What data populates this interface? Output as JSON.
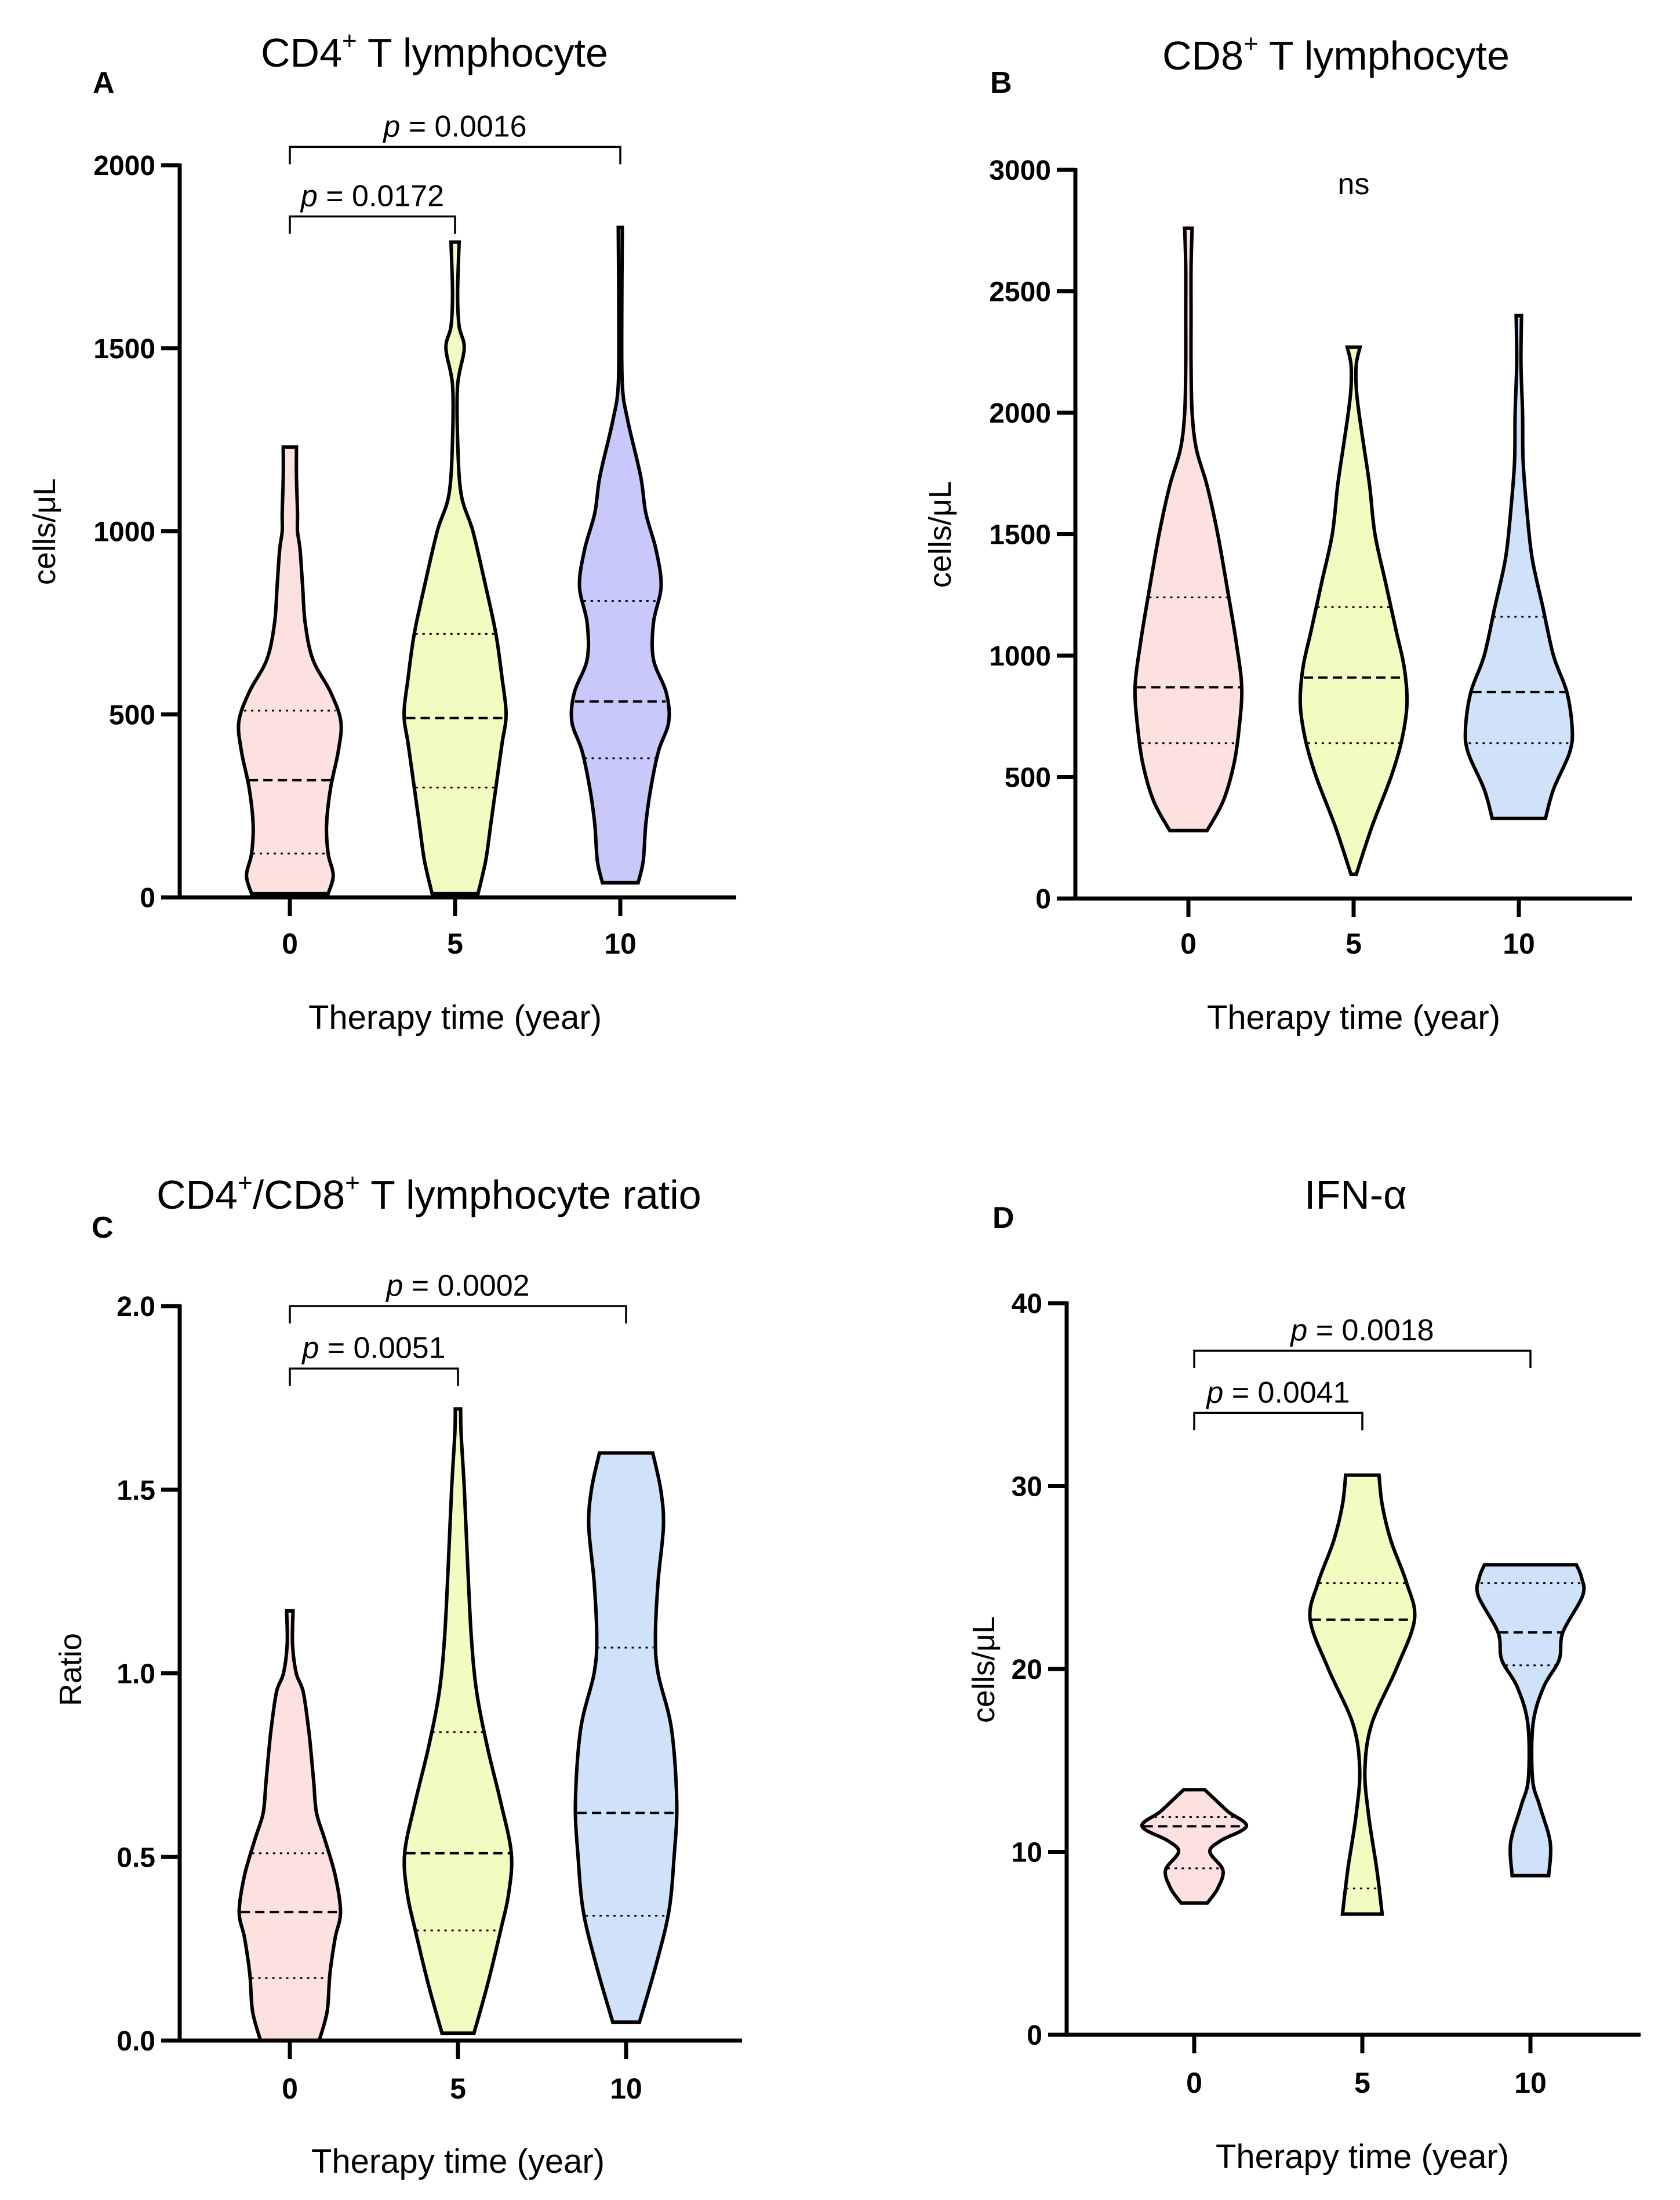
{
  "chart_data": [
    {
      "type": "violin",
      "panel_label": "A",
      "title": "CD4",
      "title_sup": "+",
      "title_rest": " T lymphocyte",
      "xlabel": "Therapy time (year)",
      "ylabel": "cells/μL",
      "ylim": [
        0,
        2000
      ],
      "yticks": [
        0,
        500,
        1000,
        1500,
        2000
      ],
      "categories": [
        "0",
        "5",
        "10"
      ],
      "colors": [
        "#fde0e0",
        "#f3fcc0",
        "#c9c8fb"
      ],
      "series": [
        {
          "name": "0",
          "min": 10,
          "q1": 120,
          "median": 320,
          "q3": 510,
          "max": 1230,
          "density": [
            [
              10,
              0.75
            ],
            [
              60,
              0.85
            ],
            [
              120,
              0.75
            ],
            [
              200,
              0.72
            ],
            [
              300,
              0.8
            ],
            [
              400,
              0.95
            ],
            [
              480,
              1.0
            ],
            [
              560,
              0.8
            ],
            [
              650,
              0.45
            ],
            [
              750,
              0.3
            ],
            [
              850,
              0.25
            ],
            [
              950,
              0.2
            ],
            [
              1000,
              0.15
            ],
            [
              1050,
              0.15
            ],
            [
              1150,
              0.13
            ],
            [
              1230,
              0.13
            ]
          ]
        },
        {
          "name": "5",
          "min": 10,
          "q1": 300,
          "median": 490,
          "q3": 720,
          "max": 1790,
          "density": [
            [
              10,
              0.45
            ],
            [
              100,
              0.6
            ],
            [
              200,
              0.7
            ],
            [
              300,
              0.8
            ],
            [
              420,
              0.92
            ],
            [
              500,
              1.0
            ],
            [
              600,
              0.92
            ],
            [
              720,
              0.8
            ],
            [
              850,
              0.6
            ],
            [
              1000,
              0.35
            ],
            [
              1100,
              0.12
            ],
            [
              1250,
              0.05
            ],
            [
              1400,
              0.05
            ],
            [
              1500,
              0.18
            ],
            [
              1560,
              0.08
            ],
            [
              1650,
              0.05
            ],
            [
              1790,
              0.08
            ]
          ]
        },
        {
          "name": "10",
          "min": 40,
          "q1": 380,
          "median": 535,
          "q3": 810,
          "max": 1830,
          "density": [
            [
              40,
              0.35
            ],
            [
              100,
              0.45
            ],
            [
              200,
              0.5
            ],
            [
              300,
              0.6
            ],
            [
              400,
              0.75
            ],
            [
              480,
              0.95
            ],
            [
              560,
              0.9
            ],
            [
              650,
              0.65
            ],
            [
              750,
              0.65
            ],
            [
              850,
              0.8
            ],
            [
              950,
              0.7
            ],
            [
              1050,
              0.5
            ],
            [
              1150,
              0.4
            ],
            [
              1300,
              0.15
            ],
            [
              1400,
              0.04
            ],
            [
              1600,
              0.03
            ],
            [
              1830,
              0.04
            ]
          ]
        }
      ],
      "annotations": [
        {
          "from": "0",
          "to": "10",
          "p": "p",
          "text": " = 0.0016",
          "y": 2050
        },
        {
          "from": "0",
          "to": "5",
          "p": "p",
          "text": " = 0.0172",
          "y": 1860
        }
      ]
    },
    {
      "type": "violin",
      "panel_label": "B",
      "title": "CD8",
      "title_sup": "+",
      "title_rest": " T lymphocyte",
      "xlabel": "Therapy time (year)",
      "ylabel": "cells/μL",
      "ylim": [
        0,
        3000
      ],
      "yticks": [
        0,
        500,
        1000,
        1500,
        2000,
        2500,
        3000
      ],
      "categories": [
        "0",
        "5",
        "10"
      ],
      "colors": [
        "#fde0e0",
        "#f3fcc0",
        "#cfe2fa"
      ],
      "series": [
        {
          "name": "0",
          "min": 280,
          "q1": 640,
          "median": 870,
          "q3": 1240,
          "max": 2760,
          "density": [
            [
              280,
              0.35
            ],
            [
              400,
              0.65
            ],
            [
              550,
              0.85
            ],
            [
              700,
              0.95
            ],
            [
              870,
              1.0
            ],
            [
              1050,
              0.9
            ],
            [
              1250,
              0.75
            ],
            [
              1500,
              0.55
            ],
            [
              1700,
              0.35
            ],
            [
              1850,
              0.15
            ],
            [
              2000,
              0.07
            ],
            [
              2200,
              0.05
            ],
            [
              2400,
              0.05
            ],
            [
              2600,
              0.05
            ],
            [
              2760,
              0.07
            ]
          ]
        },
        {
          "name": "5",
          "min": 100,
          "q1": 640,
          "median": 910,
          "q3": 1200,
          "max": 2270,
          "density": [
            [
              100,
              0.05
            ],
            [
              300,
              0.35
            ],
            [
              500,
              0.7
            ],
            [
              650,
              0.9
            ],
            [
              800,
              1.0
            ],
            [
              950,
              0.95
            ],
            [
              1100,
              0.8
            ],
            [
              1300,
              0.6
            ],
            [
              1500,
              0.4
            ],
            [
              1700,
              0.3
            ],
            [
              1850,
              0.2
            ],
            [
              2000,
              0.1
            ],
            [
              2100,
              0.05
            ],
            [
              2200,
              0.05
            ],
            [
              2270,
              0.12
            ]
          ]
        },
        {
          "name": "10",
          "min": 330,
          "q1": 640,
          "median": 850,
          "q3": 1160,
          "max": 2400,
          "density": [
            [
              330,
              0.5
            ],
            [
              450,
              0.65
            ],
            [
              600,
              0.95
            ],
            [
              700,
              1.0
            ],
            [
              850,
              0.9
            ],
            [
              1000,
              0.65
            ],
            [
              1200,
              0.45
            ],
            [
              1400,
              0.25
            ],
            [
              1600,
              0.15
            ],
            [
              1800,
              0.08
            ],
            [
              2000,
              0.07
            ],
            [
              2200,
              0.04
            ],
            [
              2400,
              0.05
            ]
          ]
        }
      ],
      "annotations": [
        {
          "from": "0",
          "to": "10",
          "p": "",
          "text": "ns",
          "y": 2900,
          "nobracket": true
        }
      ]
    },
    {
      "type": "violin",
      "panel_label": "C",
      "title": "CD4",
      "title_sup": "+",
      "title_mid": "/CD8",
      "title_sup2": "+",
      "title_rest": " T lymphocyte ratio",
      "xlabel": "Therapy time (year)",
      "ylabel": "Ratio",
      "ylim": [
        0,
        2.0
      ],
      "yticks": [
        0.0,
        0.5,
        1.0,
        1.5,
        2.0
      ],
      "tick_labels": [
        "0.0",
        "0.5",
        "1.0",
        "1.5",
        "2.0"
      ],
      "categories": [
        "0",
        "5",
        "10"
      ],
      "colors": [
        "#fde0e0",
        "#f3fcc0",
        "#cfe2fa"
      ],
      "series": [
        {
          "name": "0",
          "min": 0.0,
          "q1": 0.17,
          "median": 0.35,
          "q3": 0.51,
          "max": 1.17,
          "density": [
            [
              0.0,
              0.55
            ],
            [
              0.08,
              0.7
            ],
            [
              0.18,
              0.75
            ],
            [
              0.28,
              0.85
            ],
            [
              0.35,
              0.95
            ],
            [
              0.45,
              0.85
            ],
            [
              0.55,
              0.65
            ],
            [
              0.62,
              0.5
            ],
            [
              0.7,
              0.45
            ],
            [
              0.78,
              0.4
            ],
            [
              0.85,
              0.35
            ],
            [
              0.95,
              0.25
            ],
            [
              1.0,
              0.12
            ],
            [
              1.08,
              0.05
            ],
            [
              1.17,
              0.06
            ]
          ]
        },
        {
          "name": "5",
          "min": 0.02,
          "q1": 0.3,
          "median": 0.51,
          "q3": 0.84,
          "max": 1.72,
          "density": [
            [
              0.02,
              0.3
            ],
            [
              0.15,
              0.55
            ],
            [
              0.3,
              0.8
            ],
            [
              0.4,
              0.95
            ],
            [
              0.51,
              1.0
            ],
            [
              0.65,
              0.8
            ],
            [
              0.8,
              0.55
            ],
            [
              0.95,
              0.35
            ],
            [
              1.1,
              0.25
            ],
            [
              1.3,
              0.18
            ],
            [
              1.5,
              0.12
            ],
            [
              1.65,
              0.06
            ],
            [
              1.72,
              0.05
            ]
          ]
        },
        {
          "name": "10",
          "min": 0.05,
          "q1": 0.34,
          "median": 0.62,
          "q3": 1.07,
          "max": 1.6,
          "density": [
            [
              0.05,
              0.25
            ],
            [
              0.2,
              0.55
            ],
            [
              0.35,
              0.8
            ],
            [
              0.5,
              0.9
            ],
            [
              0.65,
              0.95
            ],
            [
              0.85,
              0.85
            ],
            [
              1.0,
              0.6
            ],
            [
              1.1,
              0.55
            ],
            [
              1.25,
              0.6
            ],
            [
              1.4,
              0.7
            ],
            [
              1.5,
              0.65
            ],
            [
              1.6,
              0.5
            ]
          ]
        }
      ],
      "annotations": [
        {
          "from": "0",
          "to": "10",
          "p": "p",
          "text": " = 0.0002",
          "y": 2.0
        },
        {
          "from": "0",
          "to": "5",
          "p": "p",
          "text": " = 0.0051",
          "y": 1.83
        }
      ]
    },
    {
      "type": "violin",
      "panel_label": "D",
      "title": "IFN-α",
      "xlabel": "Therapy time (year)",
      "ylabel": "cells/μL",
      "ylim": [
        0,
        40
      ],
      "yticks": [
        0,
        10,
        20,
        30,
        40
      ],
      "categories": [
        "0",
        "5",
        "10"
      ],
      "colors": [
        "#fde0e0",
        "#f3fcc0",
        "#cfe2fa"
      ],
      "series": [
        {
          "name": "0",
          "min": 7.2,
          "q1": 9.1,
          "median": 11.4,
          "q3": 11.9,
          "max": 13.4,
          "density": [
            [
              7.2,
              0.25
            ],
            [
              8.0,
              0.45
            ],
            [
              9.0,
              0.55
            ],
            [
              10.0,
              0.3
            ],
            [
              10.6,
              0.5
            ],
            [
              11.4,
              1.0
            ],
            [
              12.2,
              0.65
            ],
            [
              13.0,
              0.35
            ],
            [
              13.4,
              0.2
            ]
          ]
        },
        {
          "name": "5",
          "min": 6.6,
          "q1": 8.0,
          "median": 22.7,
          "q3": 24.7,
          "max": 30.6,
          "density": [
            [
              6.6,
              0.38
            ],
            [
              9.0,
              0.28
            ],
            [
              12.0,
              0.12
            ],
            [
              14.5,
              0.05
            ],
            [
              17.0,
              0.18
            ],
            [
              20.0,
              0.65
            ],
            [
              22.7,
              1.0
            ],
            [
              24.7,
              0.85
            ],
            [
              27.0,
              0.55
            ],
            [
              29.0,
              0.38
            ],
            [
              30.6,
              0.32
            ]
          ]
        },
        {
          "name": "10",
          "min": 8.7,
          "q1": 20.2,
          "median": 22.0,
          "q3": 24.7,
          "max": 25.7,
          "density": [
            [
              8.7,
              0.35
            ],
            [
              10.5,
              0.38
            ],
            [
              12.5,
              0.18
            ],
            [
              14.0,
              0.04
            ],
            [
              17.0,
              0.05
            ],
            [
              19.0,
              0.25
            ],
            [
              20.5,
              0.55
            ],
            [
              22.0,
              0.62
            ],
            [
              24.0,
              1.0
            ],
            [
              25.0,
              0.98
            ],
            [
              25.7,
              0.88
            ]
          ]
        }
      ],
      "annotations": [
        {
          "from": "0",
          "to": "10",
          "p": "p",
          "text": " = 0.0018",
          "y": 37.4
        },
        {
          "from": "0",
          "to": "5",
          "p": "p",
          "text": " = 0.0041",
          "y": 34.0
        }
      ]
    }
  ]
}
